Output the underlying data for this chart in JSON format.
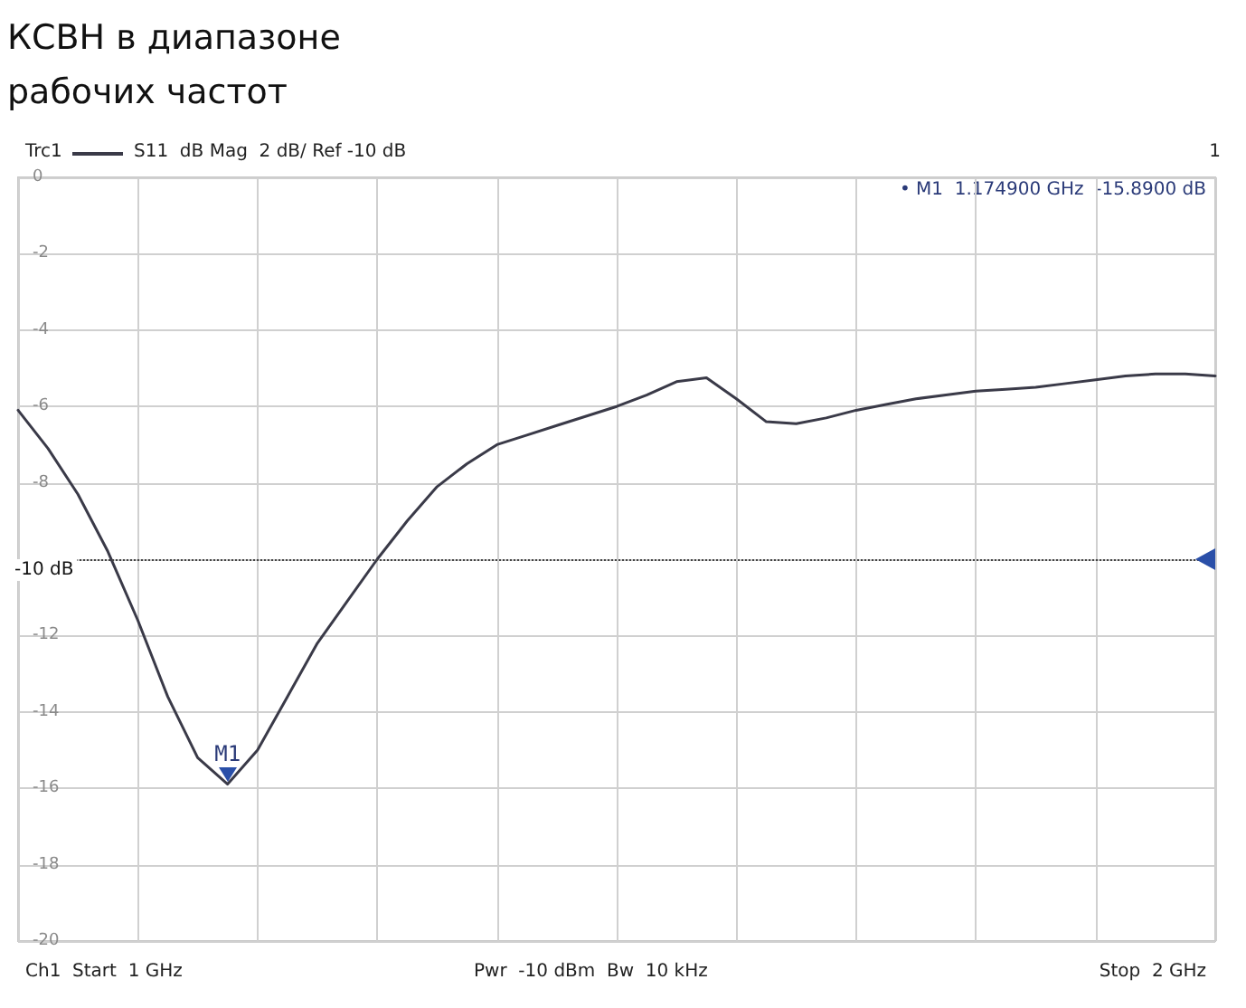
{
  "chart_data": {
    "type": "line",
    "title": "КСВН в диапазоне\nрабочих частот",
    "annotations": [
      "Trc1",
      "S11  dB Mag  2 dB/ Ref -10 dB",
      "1",
      "• M1  1.174900 GHz  -15.8900 dB",
      "Ch1  Start  1 GHz",
      "Pwr  -10 dBm  Bw  10 kHz",
      "Stop  2 GHz",
      {
        "text": "M1",
        "y": -15.89
      }
    ],
    "categories": [
      null,
      null,
      null,
      null,
      null,
      null,
      null,
      null,
      null,
      null,
      null,
      null,
      null,
      null,
      null,
      null,
      null,
      null,
      null,
      null,
      null,
      null,
      null,
      null,
      null,
      null,
      null,
      null,
      null,
      null,
      null,
      null,
      null,
      null,
      null,
      null,
      null,
      null,
      null,
      null,
      null
    ],
    "series": [
      {
        "color": "#3a3a48",
        "values": [
          -6.1,
          -7.1,
          -8.3,
          -9.8,
          -11.6,
          -13.6,
          -15.2,
          -15.89,
          -15.0,
          -13.6,
          -12.2,
          -11.1,
          -10.0,
          -9.0,
          -8.1,
          -7.5,
          -7.0,
          -6.75,
          -6.5,
          -6.25,
          -6.0,
          -5.7,
          -5.35,
          -5.25,
          -5.8,
          -6.4,
          -6.45,
          -6.3,
          -6.1,
          -5.95,
          -5.8,
          -5.7,
          -5.6,
          -5.55,
          -5.5,
          -5.4,
          -5.3,
          -5.2,
          -5.15,
          -5.15,
          -5.2
        ]
      }
    ],
    "ylim": [
      -20,
      0
    ],
    "yticks": [
      -20,
      -18,
      -16,
      -14,
      -12,
      {
        "value": -10,
        "label": null
      },
      -8,
      -6,
      -4,
      -2,
      0
    ],
    "tick_labels": "y",
    "ref_lines": [
      {
        "axis": "y",
        "value": -10,
        "label": "-10 dB",
        "color": "#444444",
        "line_style": "dotted"
      }
    ],
    "grid": true,
    "marker": "none",
    "line_style": "solid"
  }
}
